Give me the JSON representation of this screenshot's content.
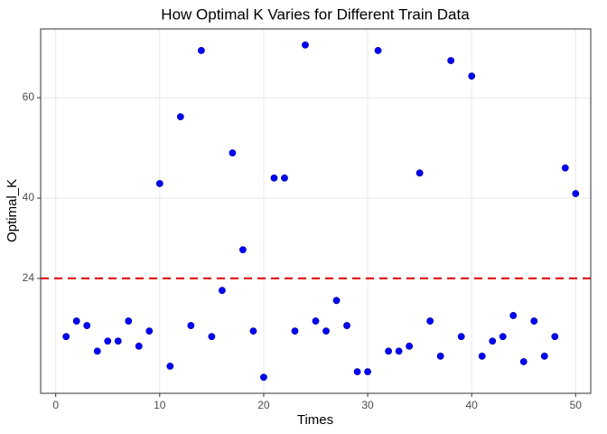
{
  "chart_data": {
    "type": "scatter",
    "title": "How Optimal K Varies for Different Train Data",
    "x_label": "Times",
    "y_label": "Optimal_K",
    "x": [
      1,
      2,
      3,
      4,
      5,
      6,
      7,
      8,
      9,
      10,
      11,
      12,
      13,
      14,
      15,
      16,
      17,
      18,
      19,
      20,
      21,
      22,
      23,
      24,
      25,
      26,
      27,
      28,
      29,
      30,
      31,
      32,
      33,
      34,
      35,
      36,
      37,
      38,
      39,
      40,
      41,
      42,
      43,
      44,
      45,
      46,
      47,
      48,
      49,
      50
    ],
    "values": [
      12.4,
      15.5,
      14.6,
      9.5,
      11.5,
      11.5,
      15.5,
      10.5,
      13.5,
      42.9,
      6.5,
      56.2,
      14.6,
      69.4,
      12.4,
      21.6,
      49,
      29.7,
      13.5,
      4.3,
      44,
      44,
      13.5,
      70.5,
      15.5,
      13.5,
      19.6,
      14.6,
      5.4,
      5.4,
      69.4,
      9.5,
      9.5,
      10.5,
      45,
      15.5,
      8.5,
      67.4,
      12.4,
      64.3,
      8.5,
      11.5,
      12.4,
      16.6,
      7.4,
      15.5,
      8.5,
      12.4,
      46,
      40.9
    ],
    "color": "#0000ff",
    "hline": 24,
    "hline_color": "#e31a1c",
    "xlim": [
      -1.45,
      51.45
    ],
    "xticks": [
      0,
      10,
      20,
      30,
      40,
      50
    ],
    "ylim": [
      1.1,
      73.7
    ],
    "yticks": [
      24,
      40,
      60
    ],
    "grid": true
  }
}
